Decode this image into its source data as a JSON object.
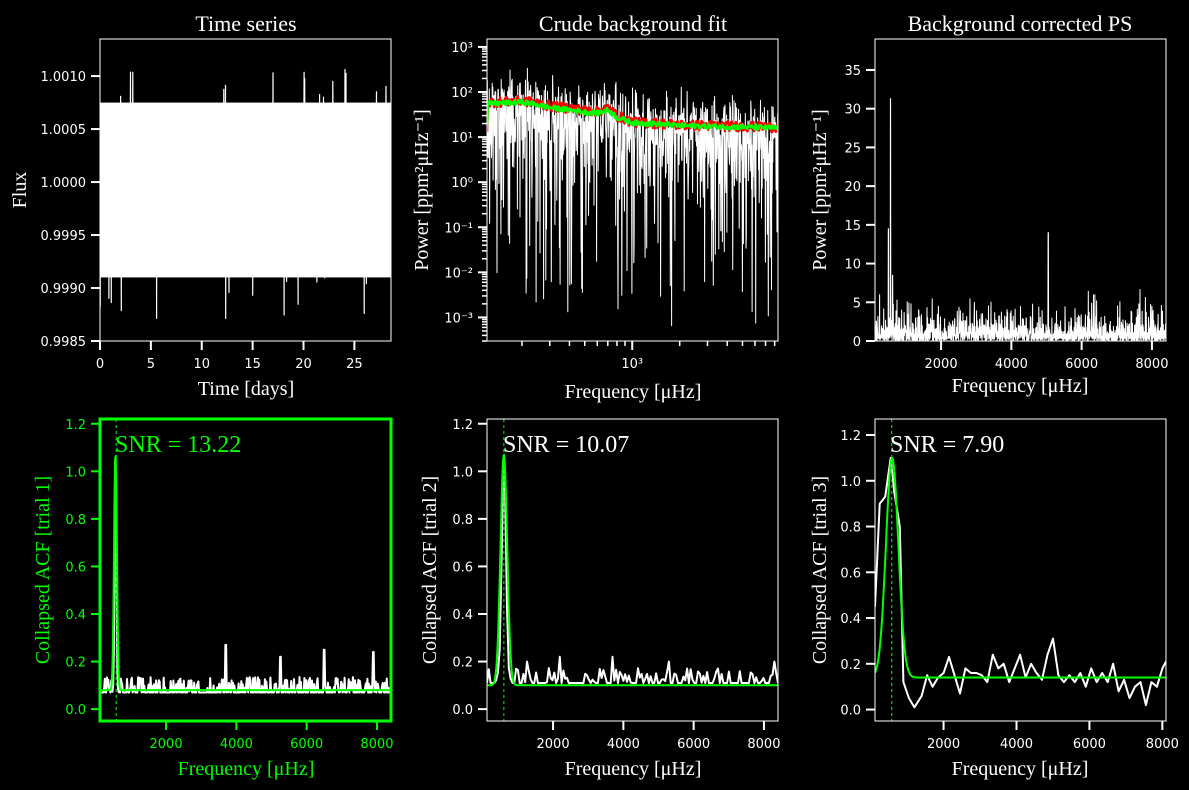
{
  "colors": {
    "background": "#000000",
    "foreground": "#ffffff",
    "highlight": "#00ff00",
    "raw": "#ff0000"
  },
  "chart_data": [
    {
      "id": "p1",
      "type": "line",
      "title": "Time series",
      "xlabel": "Time [days]",
      "ylabel": "Flux",
      "xlim": [
        0,
        28.6
      ],
      "ylim": [
        0.9985,
        1.00135
      ],
      "xticks": [
        0,
        5,
        10,
        15,
        20,
        25
      ],
      "xtick_labels": [
        "0",
        "5",
        "10",
        "15",
        "20",
        "25"
      ],
      "yticks": [
        0.9985,
        0.999,
        0.9995,
        1.0,
        1.0005,
        1.001
      ],
      "ytick_labels": [
        "0.9985",
        "0.9990",
        "0.9995",
        "1.0000",
        "1.0005",
        "1.0010"
      ],
      "series": [
        {
          "color": "#ffffff",
          "center": 1.0,
          "band": [
            0.9991,
            1.00075
          ]
        }
      ]
    },
    {
      "id": "p2",
      "type": "line",
      "yscale": "log",
      "xscale": "log",
      "title": "Crude background fit",
      "xlabel": "Frequency [μHz]",
      "ylabel": "Power [ppm²μHz⁻¹]",
      "xlim": [
        120,
        8400
      ],
      "ylim": [
        0.0003,
        1500
      ],
      "xticks": [
        1000
      ],
      "xtick_labels": [
        "10³"
      ],
      "yticks": [
        0.001,
        0.01,
        0.1,
        1,
        10,
        100,
        1000
      ],
      "ytick_labels": [
        "10⁻³",
        "10⁻²",
        "10⁻¹",
        "10⁰",
        "10¹",
        "10²",
        "10³"
      ],
      "series": [
        {
          "color": "#ffffff",
          "kind": "raw_power"
        },
        {
          "color": "#ff0000",
          "kind": "smoothed",
          "x": [
            120,
            200,
            300,
            400,
            500,
            600,
            700,
            800,
            1000,
            2000,
            4000,
            8400
          ],
          "y": [
            60,
            65,
            50,
            45,
            40,
            38,
            45,
            30,
            22,
            19,
            18,
            17
          ]
        },
        {
          "color": "#00ff00",
          "kind": "background_fit",
          "x": [
            120,
            200,
            300,
            400,
            500,
            600,
            700,
            800,
            1000,
            2000,
            4000,
            8400
          ],
          "y": [
            55,
            60,
            45,
            40,
            36,
            34,
            40,
            27,
            21,
            18,
            17,
            16
          ]
        }
      ]
    },
    {
      "id": "p3",
      "type": "line",
      "title": "Background corrected PS",
      "xlabel": "Frequency [μHz]",
      "ylabel": "Power [ppm²μHz⁻¹]",
      "xlim": [
        120,
        8400
      ],
      "ylim": [
        0,
        39
      ],
      "xticks": [
        2000,
        4000,
        6000,
        8000
      ],
      "xtick_labels": [
        "2000",
        "4000",
        "6000",
        "8000"
      ],
      "yticks": [
        0,
        5,
        10,
        15,
        20,
        25,
        30,
        35
      ],
      "ytick_labels": [
        "0",
        "5",
        "10",
        "15",
        "20",
        "25",
        "30",
        "35"
      ],
      "series": [
        {
          "color": "#ffffff",
          "peaks": [
            [
              560,
              31.3
            ],
            [
              500,
              14.5
            ],
            [
              620,
              8.5
            ],
            [
              5050,
              14.0
            ]
          ],
          "noise_max": 6.5
        }
      ]
    },
    {
      "id": "p4",
      "type": "line",
      "highlight": true,
      "title": "",
      "xlabel": "Frequency [μHz]",
      "ylabel": "Collapsed ACF [trial 1]",
      "annotation": "SNR = 13.22",
      "xlim": [
        120,
        8400
      ],
      "ylim": [
        -0.05,
        1.22
      ],
      "xticks": [
        2000,
        4000,
        6000,
        8000
      ],
      "xtick_labels": [
        "2000",
        "4000",
        "6000",
        "8000"
      ],
      "yticks": [
        0.0,
        0.2,
        0.4,
        0.6,
        0.8,
        1.0,
        1.2
      ],
      "ytick_labels": [
        "0.0",
        "0.2",
        "0.4",
        "0.6",
        "0.8",
        "1.0",
        "1.2"
      ],
      "numax_line": 580,
      "series": [
        {
          "color": "#ffffff",
          "kind": "acf",
          "peak_x": 560,
          "peak_y": 1.07,
          "baseline": 0.07,
          "bumps": [
            [
              3700,
              0.27
            ],
            [
              5250,
              0.22
            ],
            [
              6500,
              0.25
            ],
            [
              7900,
              0.24
            ]
          ]
        },
        {
          "color": "#00ff00",
          "kind": "gaussian_fit",
          "center": 560,
          "height": 1.0,
          "sigma": 40,
          "baseline": 0.08
        }
      ]
    },
    {
      "id": "p5",
      "type": "line",
      "title": "",
      "xlabel": "Frequency [μHz]",
      "ylabel": "Collapsed ACF [trial 2]",
      "annotation": "SNR = 10.07",
      "xlim": [
        120,
        8400
      ],
      "ylim": [
        -0.05,
        1.22
      ],
      "xticks": [
        2000,
        4000,
        6000,
        8000
      ],
      "xtick_labels": [
        "2000",
        "4000",
        "6000",
        "8000"
      ],
      "yticks": [
        0.0,
        0.2,
        0.4,
        0.6,
        0.8,
        1.0,
        1.2
      ],
      "ytick_labels": [
        "0.0",
        "0.2",
        "0.4",
        "0.6",
        "0.8",
        "1.0",
        "1.2"
      ],
      "numax_line": 600,
      "series": [
        {
          "color": "#ffffff",
          "kind": "acf",
          "peak_x": 600,
          "peak_y": 1.07,
          "baseline": 0.11,
          "bumps": [
            [
              1250,
              0.2
            ],
            [
              2200,
              0.22
            ],
            [
              3700,
              0.22
            ],
            [
              5300,
              0.2
            ],
            [
              8300,
              0.2
            ]
          ]
        },
        {
          "color": "#00ff00",
          "kind": "gaussian_fit",
          "center": 600,
          "height": 0.97,
          "sigma": 95,
          "baseline": 0.1
        }
      ]
    },
    {
      "id": "p6",
      "type": "line",
      "title": "",
      "xlabel": "Frequency [μHz]",
      "ylabel": "Collapsed ACF [trial 3]",
      "annotation": "SNR = 7.90",
      "xlim": [
        120,
        8100
      ],
      "ylim": [
        -0.05,
        1.27
      ],
      "xticks": [
        2000,
        4000,
        6000,
        8000
      ],
      "xtick_labels": [
        "2000",
        "4000",
        "6000",
        "8000"
      ],
      "yticks": [
        0.0,
        0.2,
        0.4,
        0.6,
        0.8,
        1.0,
        1.2
      ],
      "ytick_labels": [
        "0.0",
        "0.2",
        "0.4",
        "0.6",
        "0.8",
        "1.0",
        "1.2"
      ],
      "numax_line": 580,
      "series": [
        {
          "color": "#ffffff",
          "kind": "acf_coarse",
          "x": [
            120,
            250,
            400,
            550,
            650,
            800,
            900,
            1050,
            1200,
            1400,
            1550,
            1700,
            1850,
            2000,
            2150,
            2300,
            2450,
            2600,
            2750,
            2900,
            3050,
            3200,
            3350,
            3500,
            3650,
            3800,
            3950,
            4100,
            4250,
            4400,
            4550,
            4700,
            4850,
            5000,
            5150,
            5300,
            5450,
            5600,
            5750,
            5900,
            6050,
            6200,
            6350,
            6500,
            6650,
            6800,
            6950,
            7100,
            7250,
            7400,
            7550,
            7700,
            7850,
            8000,
            8100
          ],
          "y": [
            0.45,
            0.9,
            0.93,
            1.1,
            0.95,
            0.8,
            0.12,
            0.05,
            0.01,
            0.06,
            0.15,
            0.1,
            0.14,
            0.16,
            0.23,
            0.15,
            0.07,
            0.18,
            0.16,
            0.16,
            0.15,
            0.12,
            0.24,
            0.18,
            0.2,
            0.12,
            0.18,
            0.24,
            0.14,
            0.2,
            0.16,
            0.13,
            0.24,
            0.31,
            0.15,
            0.12,
            0.15,
            0.12,
            0.16,
            0.1,
            0.18,
            0.12,
            0.16,
            0.12,
            0.2,
            0.08,
            0.13,
            0.05,
            0.1,
            0.12,
            0.02,
            0.12,
            0.1,
            0.18,
            0.21
          ]
        },
        {
          "color": "#00ff00",
          "kind": "gaussian_fit",
          "center": 590,
          "height": 0.96,
          "sigma": 170,
          "baseline": 0.14
        }
      ]
    }
  ]
}
